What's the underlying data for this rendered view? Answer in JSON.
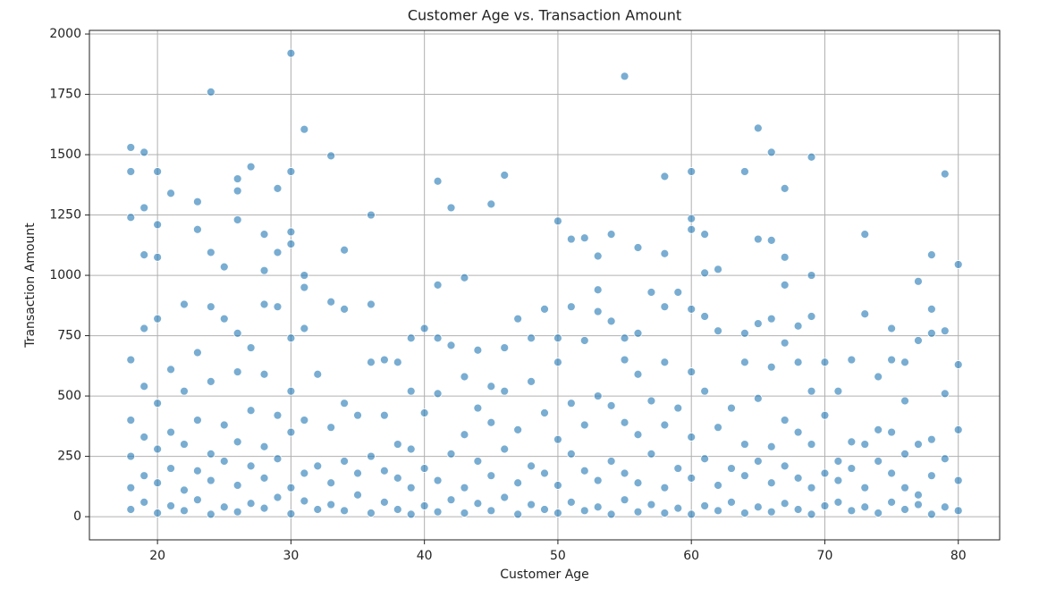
{
  "chart_data": {
    "type": "scatter",
    "title": "Customer Age vs. Transaction Amount",
    "x_label": "Customer Age",
    "y_label": "Transaction Amount",
    "color": "#1f77b4",
    "grid": true,
    "xlim": [
      14.9,
      83.1
    ],
    "ylim": [
      -96,
      2015
    ],
    "xticks": [
      20,
      30,
      40,
      50,
      60,
      70,
      80
    ],
    "yticks": [
      0,
      250,
      500,
      750,
      1000,
      1250,
      1500,
      1750,
      2000
    ],
    "x": [
      18,
      18,
      18,
      18,
      18,
      18,
      18,
      18,
      19,
      19,
      19,
      19,
      19,
      19,
      19,
      19,
      20,
      20,
      20,
      20,
      20,
      20,
      20,
      20,
      21,
      21,
      21,
      21,
      21,
      22,
      22,
      22,
      22,
      22,
      23,
      23,
      23,
      23,
      23,
      23,
      24,
      24,
      24,
      24,
      24,
      24,
      24,
      25,
      25,
      25,
      25,
      25,
      26,
      26,
      26,
      26,
      26,
      26,
      26,
      26,
      27,
      27,
      27,
      27,
      27,
      28,
      28,
      28,
      28,
      28,
      28,
      28,
      29,
      29,
      29,
      29,
      29,
      29,
      30,
      30,
      30,
      30,
      30,
      30,
      30,
      30,
      30,
      31,
      31,
      31,
      31,
      31,
      31,
      31,
      32,
      32,
      32,
      33,
      33,
      33,
      33,
      33,
      34,
      34,
      34,
      34,
      34,
      35,
      35,
      35,
      36,
      36,
      36,
      36,
      36,
      37,
      37,
      37,
      37,
      38,
      38,
      38,
      38,
      39,
      39,
      39,
      39,
      39,
      40,
      40,
      40,
      40,
      41,
      41,
      41,
      41,
      41,
      41,
      42,
      42,
      42,
      42,
      43,
      43,
      43,
      43,
      43,
      44,
      44,
      44,
      44,
      45,
      45,
      45,
      45,
      45,
      46,
      46,
      46,
      46,
      46,
      47,
      47,
      47,
      47,
      48,
      48,
      48,
      48,
      49,
      49,
      49,
      49,
      50,
      50,
      50,
      50,
      50,
      50,
      51,
      51,
      51,
      51,
      51,
      52,
      52,
      52,
      52,
      52,
      53,
      53,
      53,
      53,
      53,
      53,
      54,
      54,
      54,
      54,
      54,
      55,
      55,
      55,
      55,
      55,
      55,
      56,
      56,
      56,
      56,
      56,
      56,
      57,
      57,
      57,
      57,
      58,
      58,
      58,
      58,
      58,
      58,
      58,
      59,
      59,
      59,
      59,
      60,
      60,
      60,
      60,
      60,
      60,
      60,
      60,
      61,
      61,
      61,
      61,
      61,
      61,
      62,
      62,
      62,
      62,
      62,
      63,
      63,
      63,
      64,
      64,
      64,
      64,
      64,
      64,
      65,
      65,
      65,
      65,
      65,
      65,
      66,
      66,
      66,
      66,
      66,
      66,
      66,
      67,
      67,
      67,
      67,
      67,
      67,
      67,
      68,
      68,
      68,
      68,
      68,
      69,
      69,
      69,
      69,
      69,
      69,
      69,
      70,
      70,
      70,
      70,
      71,
      71,
      71,
      71,
      72,
      72,
      72,
      72,
      73,
      73,
      73,
      73,
      73,
      74,
      74,
      74,
      74,
      75,
      75,
      75,
      75,
      75,
      76,
      76,
      76,
      76,
      76,
      77,
      77,
      77,
      77,
      77,
      78,
      78,
      78,
      78,
      78,
      78,
      79,
      79,
      79,
      79,
      79,
      80,
      80,
      80,
      80,
      80
    ],
    "y": [
      30,
      120,
      250,
      400,
      650,
      1530,
      1430,
      1240,
      60,
      170,
      330,
      540,
      780,
      1510,
      1280,
      1085,
      15,
      140,
      280,
      470,
      820,
      1430,
      1210,
      1075,
      45,
      200,
      350,
      610,
      1340,
      25,
      110,
      300,
      520,
      880,
      70,
      190,
      400,
      680,
      1305,
      1190,
      10,
      150,
      260,
      560,
      870,
      1760,
      1095,
      40,
      230,
      380,
      820,
      1035,
      20,
      130,
      310,
      600,
      760,
      1400,
      1350,
      1230,
      55,
      210,
      440,
      700,
      1450,
      35,
      160,
      290,
      590,
      880,
      1170,
      1020,
      80,
      240,
      420,
      870,
      1360,
      1095,
      12,
      120,
      350,
      520,
      740,
      1920,
      1430,
      1180,
      1130,
      65,
      180,
      400,
      780,
      950,
      1605,
      1000,
      30,
      210,
      590,
      50,
      140,
      370,
      890,
      1495,
      25,
      230,
      470,
      860,
      1105,
      90,
      180,
      420,
      15,
      250,
      640,
      880,
      1250,
      60,
      190,
      420,
      650,
      30,
      160,
      300,
      640,
      10,
      120,
      280,
      520,
      740,
      45,
      200,
      430,
      780,
      20,
      150,
      510,
      740,
      960,
      1390,
      70,
      260,
      710,
      1280,
      15,
      120,
      340,
      580,
      990,
      55,
      230,
      450,
      690,
      25,
      170,
      390,
      540,
      1295,
      80,
      280,
      520,
      700,
      1415,
      10,
      140,
      360,
      820,
      50,
      210,
      560,
      740,
      30,
      180,
      430,
      860,
      15,
      130,
      320,
      640,
      740,
      1225,
      60,
      260,
      470,
      870,
      1150,
      25,
      190,
      380,
      730,
      1155,
      40,
      150,
      500,
      940,
      850,
      1080,
      10,
      230,
      460,
      810,
      1170,
      70,
      180,
      390,
      650,
      740,
      1825,
      20,
      140,
      340,
      590,
      760,
      1115,
      50,
      260,
      480,
      930,
      15,
      120,
      380,
      640,
      870,
      1410,
      1090,
      35,
      200,
      450,
      930,
      10,
      160,
      330,
      600,
      860,
      1430,
      1235,
      1190,
      45,
      240,
      520,
      830,
      1010,
      1170,
      25,
      130,
      370,
      770,
      1025,
      60,
      200,
      450,
      15,
      170,
      300,
      640,
      760,
      1430,
      40,
      230,
      490,
      800,
      1610,
      1150,
      20,
      140,
      290,
      620,
      820,
      1510,
      1145,
      55,
      210,
      400,
      720,
      960,
      1360,
      1075,
      30,
      160,
      350,
      640,
      790,
      10,
      120,
      300,
      520,
      830,
      1490,
      1000,
      45,
      180,
      420,
      640,
      60,
      150,
      230,
      520,
      25,
      200,
      310,
      650,
      40,
      120,
      300,
      840,
      1170,
      15,
      230,
      360,
      580,
      60,
      180,
      350,
      650,
      780,
      30,
      120,
      260,
      480,
      640,
      50,
      90,
      300,
      730,
      975,
      10,
      170,
      320,
      760,
      860,
      1085,
      40,
      240,
      510,
      770,
      1420,
      25,
      150,
      360,
      630,
      1045
    ]
  }
}
